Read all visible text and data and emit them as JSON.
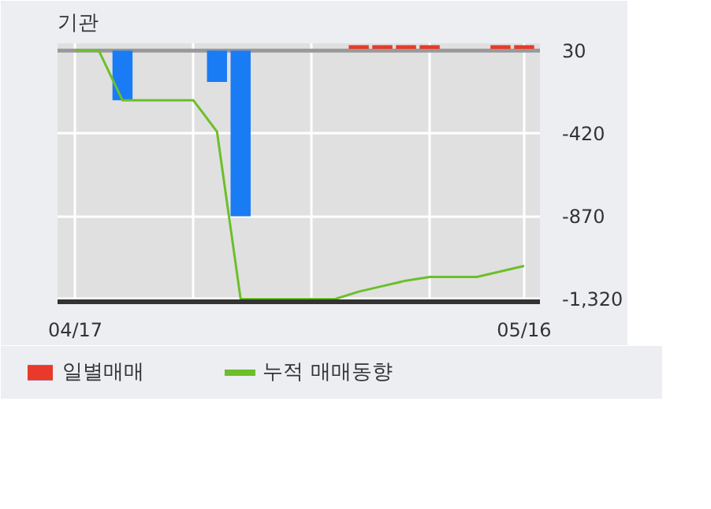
{
  "chart_data": {
    "type": "bar",
    "title": "기관",
    "categories": [
      "04/17",
      null,
      null,
      null,
      null,
      null,
      null,
      null,
      null,
      null,
      null,
      null,
      null,
      null,
      null,
      null,
      null,
      null,
      null,
      "05/16"
    ],
    "series": [
      {
        "name": "일별매매",
        "colors": [
          null,
          null,
          "#1a7cf5",
          null,
          null,
          null,
          "#1a7cf5",
          "#1a7cf5",
          null,
          null,
          null,
          null,
          "#e8392a",
          "#e8392a",
          "#e8392a",
          "#e8392a",
          null,
          null,
          "#e8392a",
          "#e8392a"
        ],
        "base": [
          null,
          null,
          30,
          null,
          null,
          null,
          30,
          30,
          null,
          null,
          null,
          null,
          40,
          40,
          40,
          40,
          null,
          null,
          40,
          40
        ],
        "values": [
          null,
          null,
          -270,
          null,
          null,
          null,
          -170,
          -900,
          null,
          null,
          null,
          null,
          20,
          20,
          20,
          20,
          null,
          null,
          20,
          20
        ]
      },
      {
        "name": "누적 매매동향",
        "type": "line",
        "color": "#6cbf2a",
        "values": [
          30,
          30,
          -240,
          -240,
          -240,
          -240,
          -410,
          -1320,
          -1320,
          -1320,
          -1320,
          -1320,
          -1280,
          -1250,
          -1220,
          -1200,
          -1200,
          -1200,
          -1170,
          -1140
        ]
      }
    ],
    "ylim": [
      -1335,
      70
    ],
    "yticks": [
      30,
      -420,
      -870,
      {
        "value": -1320,
        "label": "-1,320"
      }
    ],
    "ref_lines": [
      {
        "axis": "y",
        "value": 30,
        "color": "#999999"
      }
    ],
    "grid": true,
    "legend": "bottom",
    "marker": "none",
    "line_style": "solid"
  }
}
